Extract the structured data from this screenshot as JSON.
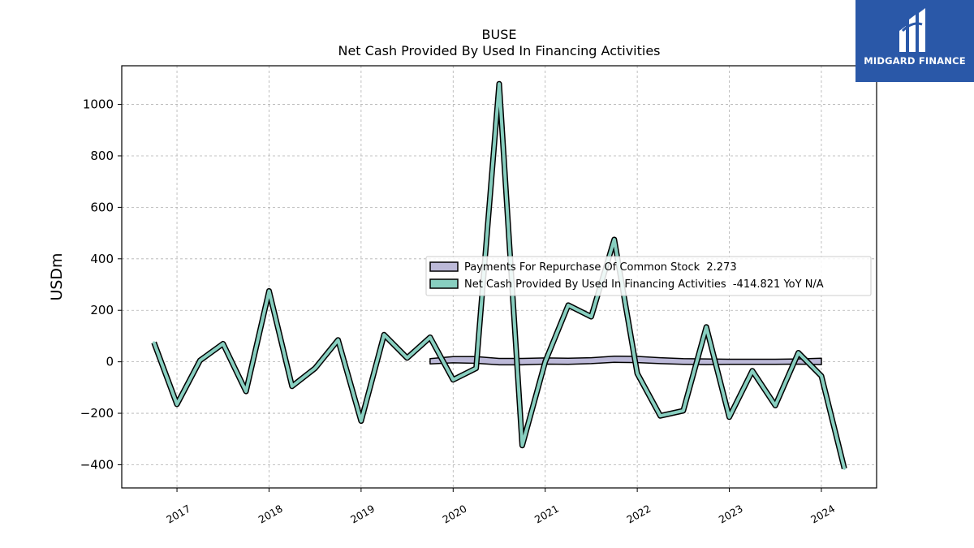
{
  "chart_data": {
    "type": "line",
    "title": "BUSE",
    "subtitle": "Net Cash Provided By Used In Financing Activities",
    "ylabel": "USDm",
    "ylim": [
      -490,
      1150
    ],
    "yticks": [
      -400,
      -200,
      0,
      200,
      400,
      600,
      800,
      1000
    ],
    "ytick_labels": [
      "−400",
      "−200",
      "0",
      "200",
      "400",
      "600",
      "800",
      "1000"
    ],
    "xlim": [
      2016.4,
      2024.6
    ],
    "xticks": [
      2017,
      2018,
      2019,
      2020,
      2021,
      2022,
      2023,
      2024
    ],
    "xtick_labels": [
      "2017",
      "2018",
      "2019",
      "2020",
      "2021",
      "2022",
      "2023",
      "2024"
    ],
    "grid": true,
    "legend_position": "center-right",
    "series": [
      {
        "name": "Payments For Repurchase Of Common Stock",
        "legend_label": "Payments For Repurchase Of Common Stock  2.273",
        "color": "#bcb9d8",
        "kind": "band",
        "x": [
          2019.75,
          2020.0,
          2020.25,
          2020.5,
          2020.75,
          2021.0,
          2021.25,
          2021.5,
          2021.75,
          2022.0,
          2022.25,
          2022.5,
          2022.75,
          2023.0,
          2023.25,
          2023.5,
          2023.75,
          2024.0
        ],
        "values": [
          0,
          10,
          11,
          6,
          4,
          4,
          3,
          4,
          7,
          15,
          13,
          5,
          2,
          1,
          0,
          0,
          1,
          2.273
        ],
        "lower": [
          -8,
          -4,
          -6,
          -12,
          -12,
          -9,
          -10,
          -7,
          -2,
          -3,
          -7,
          -10,
          -11,
          -10,
          -10,
          -10,
          -9,
          -11
        ],
        "upper": [
          12,
          20,
          20,
          13,
          13,
          15,
          14,
          16,
          22,
          21,
          16,
          12,
          11,
          10,
          10,
          10,
          11,
          14
        ]
      },
      {
        "name": "Net Cash Provided By Used In Financing Activities",
        "legend_label": "Net Cash Provided By Used In Financing Activities  -414.821 YoY N/A",
        "color": "#88cfc0",
        "kind": "line",
        "x": [
          2016.75,
          2017.0,
          2017.25,
          2017.5,
          2017.75,
          2018.0,
          2018.25,
          2018.5,
          2018.75,
          2019.0,
          2019.25,
          2019.5,
          2019.75,
          2020.0,
          2020.25,
          2020.5,
          2020.75,
          2021.0,
          2021.25,
          2021.5,
          2021.75,
          2022.0,
          2022.25,
          2022.5,
          2022.75,
          2023.0,
          2023.25,
          2023.5,
          2023.75,
          2024.0,
          2024.25
        ],
        "values": [
          75,
          -165,
          5,
          70,
          -115,
          275,
          -95,
          -25,
          85,
          -230,
          105,
          15,
          95,
          -70,
          -25,
          1080,
          -325,
          0,
          220,
          175,
          475,
          -45,
          -210,
          -190,
          135,
          -215,
          -35,
          -170,
          35,
          -55,
          -414.821
        ]
      }
    ]
  },
  "brand": {
    "name": "MIDGARD FINANCE",
    "background": "#2a58a8",
    "icon": "midgard-logo-icon"
  }
}
